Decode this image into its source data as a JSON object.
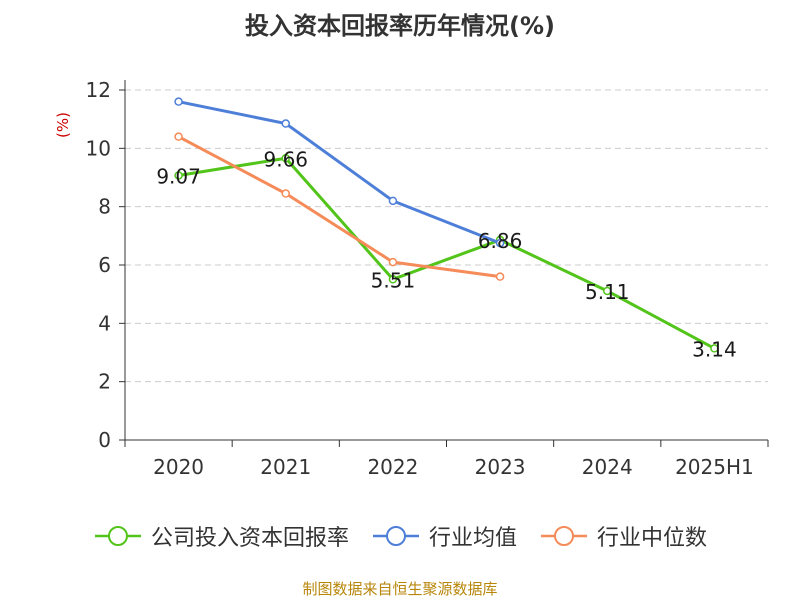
{
  "chart_data": {
    "type": "line",
    "title": "投入资本回报率历年情况(%)",
    "ylabel": "(%)",
    "xlabel": "",
    "categories": [
      "2020",
      "2021",
      "2022",
      "2023",
      "2024",
      "2025H1"
    ],
    "ylim": [
      0,
      12
    ],
    "yticks": [
      0,
      2,
      4,
      6,
      8,
      10,
      12
    ],
    "grid": true,
    "legend_position": "bottom",
    "series": [
      {
        "name": "公司投入资本回报率",
        "color": "#52c41a",
        "values": [
          9.07,
          9.66,
          5.51,
          6.86,
          5.11,
          3.14
        ],
        "labels": true
      },
      {
        "name": "行业均值",
        "color": "#4e7fd8",
        "values": [
          11.6,
          10.85,
          8.2,
          6.75,
          null,
          null
        ],
        "labels": false
      },
      {
        "name": "行业中位数",
        "color": "#f58b58",
        "values": [
          10.4,
          8.45,
          6.1,
          5.6,
          null,
          null
        ],
        "labels": false
      }
    ]
  },
  "source": "制图数据来自恒生聚源数据库"
}
